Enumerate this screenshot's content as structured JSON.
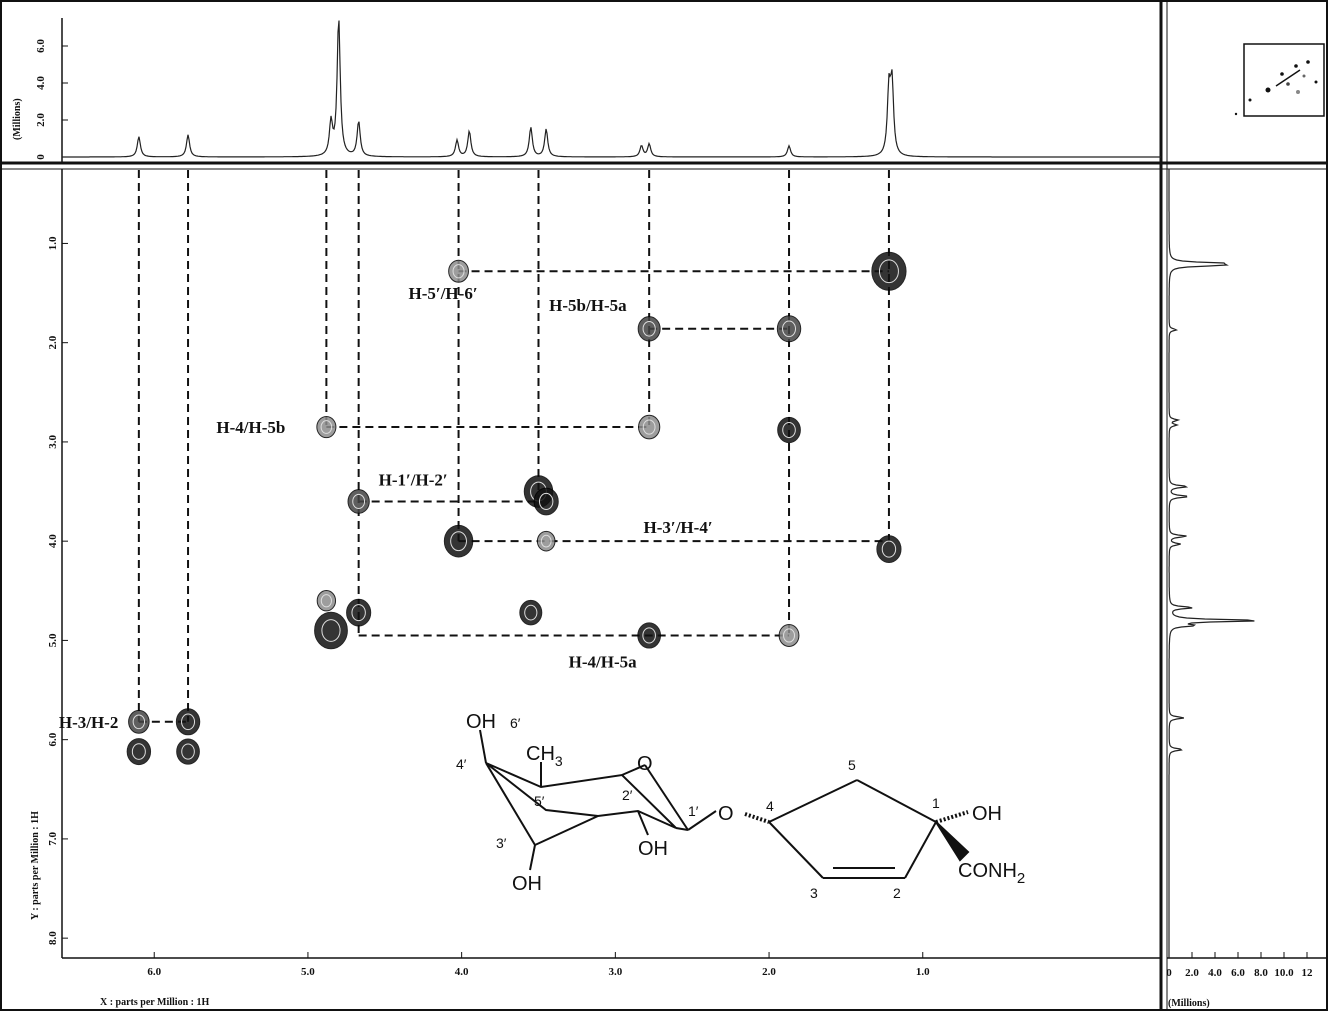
{
  "chart_data": {
    "type": "scatter",
    "subtype": "2D COSY NMR spectrum",
    "xlabel": "X : parts per Million : 1H",
    "ylabel": "Y : parts per Million : 1H",
    "top_axis_label": "(Millions)",
    "side_axis_label": "(Millions)",
    "xlim": [
      6.6,
      -0.55
    ],
    "ylim": [
      0.25,
      8.2
    ],
    "x_ticks": [
      "6.0",
      "5.0",
      "4.0",
      "3.0",
      "2.0",
      "1.0"
    ],
    "x_tick_values": [
      6.0,
      5.0,
      4.0,
      3.0,
      2.0,
      1.0
    ],
    "y_ticks": [
      "1.0",
      "2.0",
      "3.0",
      "4.0",
      "5.0",
      "6.0",
      "7.0",
      "8.0"
    ],
    "y_tick_values": [
      1.0,
      2.0,
      3.0,
      4.0,
      5.0,
      6.0,
      7.0,
      8.0
    ],
    "top_ticks": [
      "0",
      "2.0",
      "4.0",
      "6.0"
    ],
    "top_tick_values": [
      0,
      2,
      4,
      6
    ],
    "side_ticks": [
      "0",
      "2.0",
      "4.0",
      "6.0",
      "8.0",
      "10.0",
      "12"
    ],
    "side_tick_values": [
      0,
      2,
      4,
      6,
      8,
      10,
      12
    ],
    "projection_peaks": [
      {
        "ppm": 6.1,
        "height": 1.1
      },
      {
        "ppm": 5.78,
        "height": 1.2
      },
      {
        "ppm": 4.85,
        "height": 1.8
      },
      {
        "ppm": 4.8,
        "height": 7.5
      },
      {
        "ppm": 4.67,
        "height": 1.9
      },
      {
        "ppm": 4.03,
        "height": 0.9
      },
      {
        "ppm": 3.95,
        "height": 1.4
      },
      {
        "ppm": 3.55,
        "height": 1.6
      },
      {
        "ppm": 3.45,
        "height": 1.5
      },
      {
        "ppm": 2.83,
        "height": 0.6
      },
      {
        "ppm": 2.78,
        "height": 0.7
      },
      {
        "ppm": 1.87,
        "height": 0.6
      },
      {
        "ppm": 1.22,
        "height": 3.5
      },
      {
        "ppm": 1.2,
        "height": 3.8
      }
    ],
    "cross_peaks": [
      {
        "x": 1.22,
        "y": 1.28,
        "size": 3,
        "shade": "dark"
      },
      {
        "x": 4.02,
        "y": 1.28,
        "size": 1,
        "shade": "light"
      },
      {
        "x": 1.87,
        "y": 1.86,
        "size": 1.5,
        "shade": "mid"
      },
      {
        "x": 2.78,
        "y": 1.86,
        "size": 1.3,
        "shade": "mid"
      },
      {
        "x": 4.88,
        "y": 2.85,
        "size": 0.9,
        "shade": "light"
      },
      {
        "x": 2.78,
        "y": 2.85,
        "size": 1.2,
        "shade": "light"
      },
      {
        "x": 1.87,
        "y": 2.88,
        "size": 1.4,
        "shade": "dark"
      },
      {
        "x": 4.67,
        "y": 3.6,
        "size": 1.2,
        "shade": "mid"
      },
      {
        "x": 3.5,
        "y": 3.5,
        "size": 2.2,
        "shade": "dark"
      },
      {
        "x": 3.45,
        "y": 3.6,
        "size": 1.6,
        "shade": "dark"
      },
      {
        "x": 4.02,
        "y": 4.0,
        "size": 2.2,
        "shade": "dark"
      },
      {
        "x": 3.45,
        "y": 4.0,
        "size": 0.7,
        "shade": "light"
      },
      {
        "x": 1.22,
        "y": 4.08,
        "size": 1.6,
        "shade": "dark"
      },
      {
        "x": 4.88,
        "y": 4.6,
        "size": 0.8,
        "shade": "light"
      },
      {
        "x": 4.67,
        "y": 4.72,
        "size": 1.6,
        "shade": "dark"
      },
      {
        "x": 4.85,
        "y": 4.9,
        "size": 2.8,
        "shade": "dark"
      },
      {
        "x": 3.55,
        "y": 4.72,
        "size": 1.3,
        "shade": "dark"
      },
      {
        "x": 2.78,
        "y": 4.95,
        "size": 1.4,
        "shade": "dark"
      },
      {
        "x": 1.87,
        "y": 4.95,
        "size": 1.0,
        "shade": "light"
      },
      {
        "x": 6.1,
        "y": 5.82,
        "size": 1.1,
        "shade": "mid"
      },
      {
        "x": 5.78,
        "y": 5.82,
        "size": 1.5,
        "shade": "dark"
      },
      {
        "x": 6.1,
        "y": 6.12,
        "size": 1.5,
        "shade": "dark"
      },
      {
        "x": 5.78,
        "y": 6.12,
        "size": 1.4,
        "shade": "dark"
      }
    ],
    "correlations": [
      {
        "label": "H-5′/H-6′",
        "x1": 4.02,
        "x2": 1.22,
        "y": 1.28
      },
      {
        "label": "H-5b/H-5a",
        "x1": 2.78,
        "x2": 1.87,
        "y": 1.86
      },
      {
        "label": "H-4/H-5b",
        "x1": 4.88,
        "x2": 2.78,
        "y": 2.85
      },
      {
        "label": "H-1′/H-2′",
        "x1": 4.67,
        "x2": 3.5,
        "y": 3.6
      },
      {
        "label": "H-3′/H-4′",
        "x1": 4.02,
        "x2": 1.22,
        "y": 4.0
      },
      {
        "label": "H-4/H-5a",
        "x1": 4.67,
        "x2": 1.87,
        "y": 4.95
      },
      {
        "label": "H-3/H-2",
        "x1": 6.1,
        "x2": 5.78,
        "y": 5.82
      }
    ],
    "annotations": [
      "H-5′/H-6′",
      "H-5b/H-5a",
      "H-4/H-5b",
      "H-1′/H-2′",
      "H-3′/H-4′",
      "H-4/H-5a",
      "H-3/H-2"
    ]
  },
  "structure": {
    "labels": {
      "oh6": "OH",
      "six_prime": "6′",
      "ch": "CH",
      "ch_sub": "3",
      "c4p": "4′",
      "c5p": "5′",
      "c2p": "2′",
      "c1p": "1′",
      "c3p": "3′",
      "ring_o": "O",
      "link_o": "O",
      "oh2": "OH",
      "oh3": "OH",
      "c4": "4",
      "c5": "5",
      "c1": "1",
      "c2": "2",
      "c3": "3",
      "oh1": "OH",
      "conh": "CONH",
      "conh_sub": "2"
    }
  },
  "colors": {
    "ink": "#111111",
    "light": "#8c8c8c",
    "mid": "#444444",
    "dark": "#111111"
  }
}
